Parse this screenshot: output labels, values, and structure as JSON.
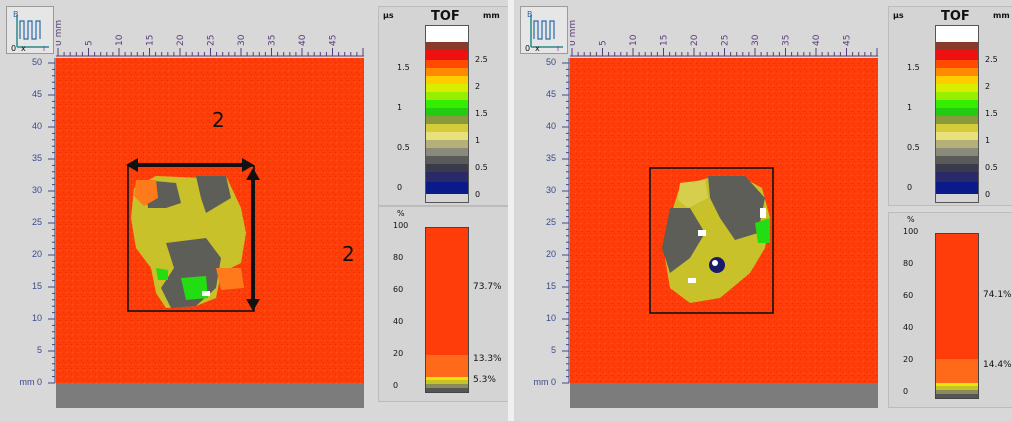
{
  "left": {
    "x_ticks": [
      "0 mm",
      "5",
      "10",
      "15",
      "20",
      "25",
      "30",
      "35",
      "40",
      "45"
    ],
    "y_ticks": [
      "50",
      "45",
      "40",
      "35",
      "30",
      "25",
      "20",
      "15",
      "10",
      "5",
      "mm 0"
    ],
    "annotation_horizontal": "2",
    "annotation_vertical": "2",
    "tof_title": "TOF",
    "unit_left": "µs",
    "unit_right": "mm",
    "us_ticks": [
      "1.5",
      "1",
      "0.5",
      "0"
    ],
    "mm_ticks": [
      "2.5",
      "2",
      "1.5",
      "1",
      "0.5",
      "0"
    ],
    "percent_label": "%",
    "percent_axis": [
      "100",
      "80",
      "60",
      "40",
      "20",
      "0"
    ],
    "percent_values": [
      "73.7%",
      "13.3%",
      "5.3%"
    ]
  },
  "right": {
    "x_ticks": [
      "0 mm",
      "5",
      "10",
      "15",
      "20",
      "25",
      "30",
      "35",
      "40",
      "45"
    ],
    "y_ticks": [
      "50",
      "45",
      "40",
      "35",
      "30",
      "25",
      "20",
      "15",
      "10",
      "5",
      "mm 0"
    ],
    "tof_title": "TOF",
    "unit_left": "µs",
    "unit_right": "mm",
    "us_ticks": [
      "1.5",
      "1",
      "0.5",
      "0"
    ],
    "mm_ticks": [
      "2.5",
      "2",
      "1.5",
      "1",
      "0.5",
      "0"
    ],
    "percent_label": "%",
    "percent_axis": [
      "100",
      "80",
      "60",
      "40",
      "20",
      "0"
    ],
    "percent_values": [
      "74.1%",
      "14.4%"
    ]
  },
  "colors": {
    "scan_bg": "#ff3d0a",
    "gray_strip": "#7c7c7c",
    "dark_gray": "#5e5e58",
    "olive": "#c9c12a",
    "light_olive": "#d5cf4d",
    "green": "#22dd11",
    "orange": "#ff7a1a",
    "axis_purple": "#5a3d78"
  }
}
